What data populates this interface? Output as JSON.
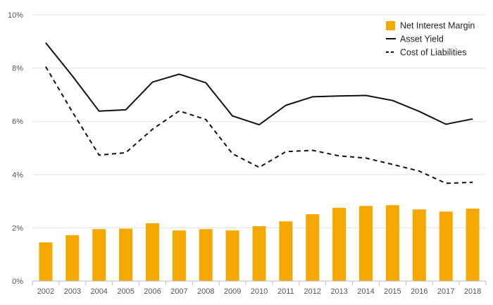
{
  "chart_data": {
    "type": "bar",
    "categories": [
      "2002",
      "2003",
      "2004",
      "2005",
      "2006",
      "2007",
      "2008",
      "2009",
      "2010",
      "2011",
      "2012",
      "2013",
      "2014",
      "2015",
      "2016",
      "2017",
      "2018"
    ],
    "series": [
      {
        "name": "Net Interest Margin",
        "kind": "bar",
        "style": "solid",
        "color": "#F5A800",
        "values": [
          1.45,
          1.72,
          1.95,
          1.97,
          2.17,
          1.9,
          1.95,
          1.9,
          2.06,
          2.24,
          2.51,
          2.75,
          2.82,
          2.85,
          2.69,
          2.61,
          2.72
        ]
      },
      {
        "name": "Asset Yield",
        "kind": "line",
        "style": "solid",
        "color": "#111111",
        "values": [
          8.95,
          7.7,
          6.38,
          6.43,
          7.47,
          7.77,
          7.45,
          6.2,
          5.87,
          6.6,
          6.92,
          6.95,
          6.97,
          6.78,
          6.37,
          5.89,
          6.09
        ]
      },
      {
        "name": "Cost of Liabilities",
        "kind": "line",
        "style": "dashed",
        "color": "#111111",
        "values": [
          8.05,
          6.35,
          4.73,
          4.82,
          5.7,
          6.39,
          6.07,
          4.78,
          4.27,
          4.86,
          4.91,
          4.7,
          4.62,
          4.38,
          4.13,
          3.67,
          3.71
        ]
      }
    ],
    "y_ticks": [
      "0%",
      "2%",
      "4%",
      "6%",
      "8%",
      "10%"
    ],
    "ylim": [
      0,
      10
    ],
    "grid": true,
    "legend_position": "top-right"
  }
}
